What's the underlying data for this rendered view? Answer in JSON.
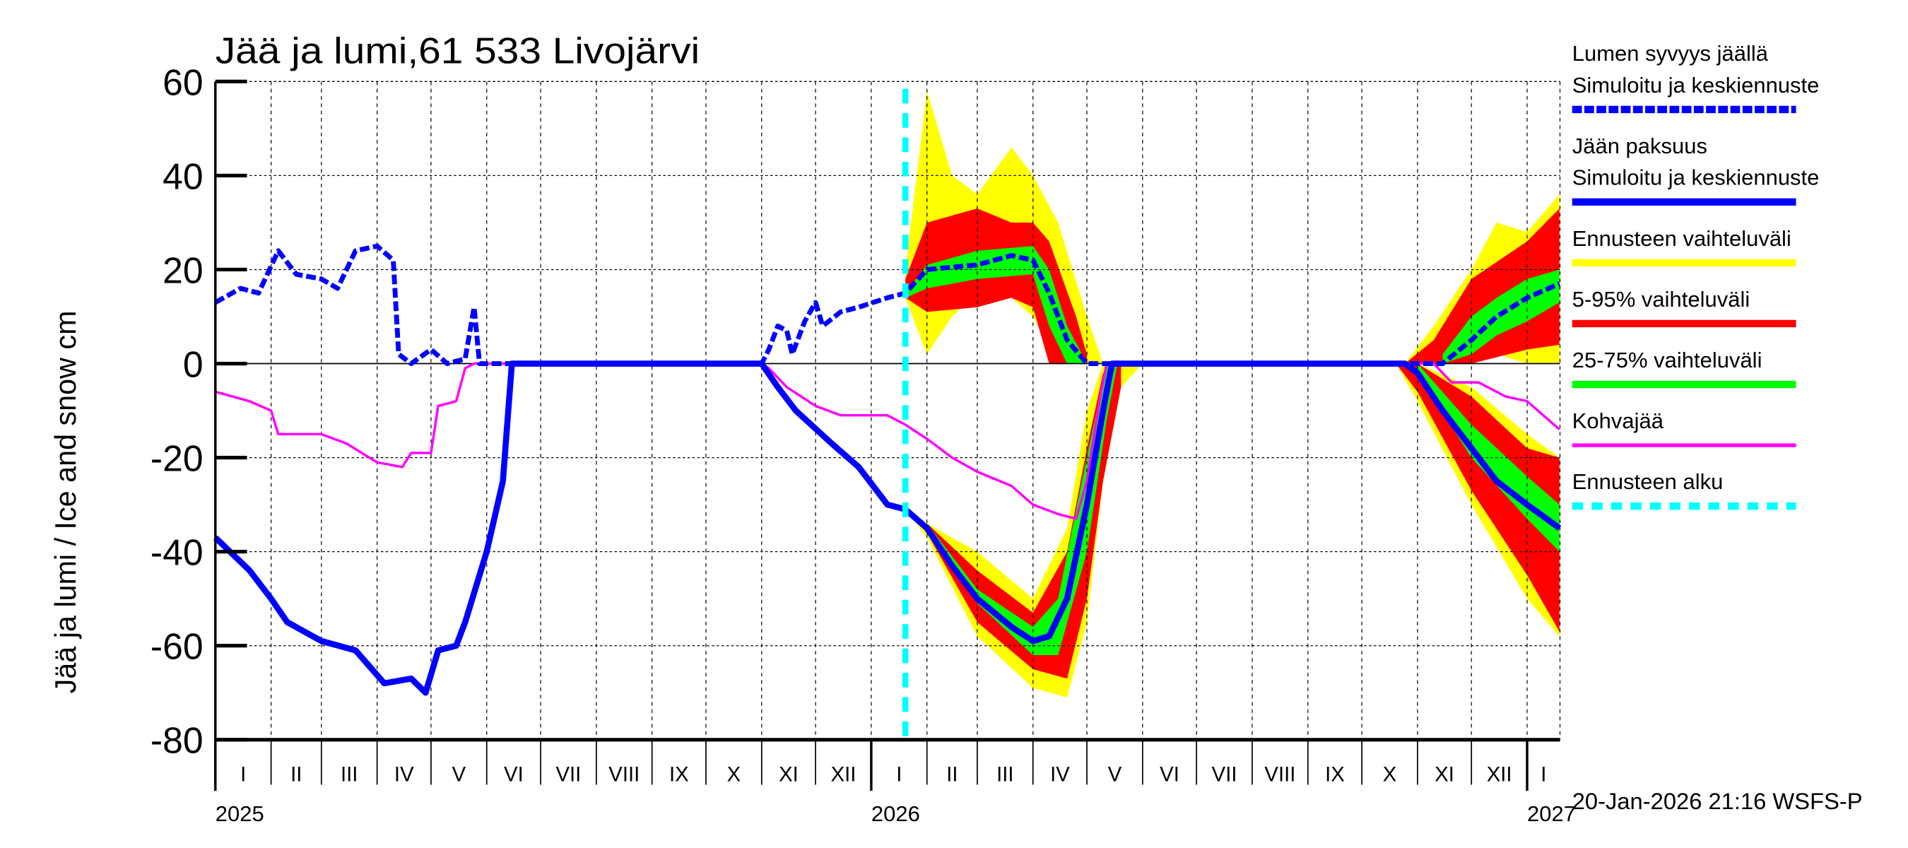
{
  "chart_data": {
    "type": "area",
    "title": "Jää ja lumi,61 533 Livojärvi",
    "ylabel": "Jää ja lumi / Ice and snow    cm",
    "ylim": [
      -80,
      60
    ],
    "yticks": [
      "60",
      "40",
      "20",
      "0",
      "-20",
      "-40",
      "-60",
      "-80"
    ],
    "xlim": [
      "2025-01-01",
      "2027-01-19"
    ],
    "month_labels": [
      "I",
      "II",
      "III",
      "IV",
      "V",
      "VI",
      "VII",
      "VIII",
      "IX",
      "X",
      "XI",
      "XII",
      "I",
      "II",
      "III",
      "IV",
      "V",
      "VI",
      "VII",
      "VIII",
      "IX",
      "X",
      "XI",
      "XII",
      "I"
    ],
    "year_labels": [
      "2025",
      "2026",
      "2027"
    ],
    "grid": true,
    "forecast_start": "2026-01-20",
    "timestamp": "20-Jan-2026 21:16 WSFS-P",
    "legend": {
      "placement": "right",
      "items": [
        {
          "label1": "Lumen syvyys jäällä",
          "label2": "Simuloitu ja keskiennuste",
          "color": "#0000ff",
          "style": "dashed"
        },
        {
          "label1": "Jään paksuus",
          "label2": "Simuloitu ja keskiennuste",
          "color": "#0000ff",
          "style": "solid"
        },
        {
          "label1": "Ennusteen vaihteluväli",
          "color": "#ffff00",
          "style": "band"
        },
        {
          "label1": "5-95% vaihteluväli",
          "color": "#ff0000",
          "style": "band"
        },
        {
          "label1": "25-75% vaihteluväli",
          "color": "#00ff00",
          "style": "band"
        },
        {
          "label1": "Kohvajää",
          "color": "#ff00ff",
          "style": "thin"
        },
        {
          "label1": "Ennusteen alku",
          "color": "#00ffff",
          "style": "dashed"
        }
      ]
    },
    "bands": [
      {
        "name": "Ennusteen vaihteluväli",
        "color": "#ffff00",
        "points": [
          [
            "2026-01-20",
            14,
            20
          ],
          [
            "2026-02-01",
            2,
            58
          ],
          [
            "2026-02-15",
            10,
            40
          ],
          [
            "2026-03-01",
            15,
            36
          ],
          [
            "2026-03-20",
            14,
            46
          ],
          [
            "2026-04-01",
            10,
            40
          ],
          [
            "2026-04-15",
            0,
            30
          ],
          [
            "2026-05-01",
            0,
            10
          ],
          [
            "2026-05-10",
            0,
            0
          ]
        ]
      },
      {
        "name": "Ennusteen vaihteluväli",
        "color": "#ffff00",
        "points": [
          [
            "2026-10-25",
            0,
            0
          ],
          [
            "2026-11-10",
            0,
            8
          ],
          [
            "2026-12-01",
            0,
            20
          ],
          [
            "2026-12-15",
            2,
            30
          ],
          [
            "2027-01-01",
            0,
            28
          ],
          [
            "2027-01-19",
            0,
            36
          ]
        ]
      },
      {
        "name": "Ennusteen vaihteluväli",
        "color": "#ffff00",
        "points": [
          [
            "2026-01-20",
            -31,
            -31
          ],
          [
            "2026-02-01",
            -37,
            -34
          ],
          [
            "2026-03-01",
            -58,
            -40
          ],
          [
            "2026-04-01",
            -69,
            -50
          ],
          [
            "2026-04-20",
            -71,
            -35
          ],
          [
            "2026-05-01",
            -55,
            -10
          ],
          [
            "2026-05-10",
            -25,
            0
          ],
          [
            "2026-05-20",
            -5,
            0
          ],
          [
            "2026-06-01",
            0,
            0
          ]
        ]
      },
      {
        "name": "Ennusteen vaihteluväli",
        "color": "#ffff00",
        "points": [
          [
            "2026-10-20",
            0,
            0
          ],
          [
            "2026-11-01",
            -8,
            0
          ],
          [
            "2026-12-01",
            -30,
            -5
          ],
          [
            "2027-01-01",
            -50,
            -15
          ],
          [
            "2027-01-19",
            -58,
            -20
          ]
        ]
      },
      {
        "name": "5-95% vaihteluväli",
        "color": "#ff0000",
        "points": [
          [
            "2026-01-20",
            14,
            18
          ],
          [
            "2026-02-01",
            11,
            30
          ],
          [
            "2026-03-01",
            12,
            33
          ],
          [
            "2026-03-20",
            14,
            30
          ],
          [
            "2026-04-01",
            12,
            30
          ],
          [
            "2026-04-10",
            0,
            26
          ],
          [
            "2026-04-25",
            0,
            10
          ],
          [
            "2026-05-01",
            0,
            2
          ]
        ]
      },
      {
        "name": "5-95% vaihteluväli",
        "color": "#ff0000",
        "points": [
          [
            "2026-10-25",
            0,
            0
          ],
          [
            "2026-11-10",
            0,
            5
          ],
          [
            "2026-12-01",
            0,
            18
          ],
          [
            "2027-01-01",
            3,
            26
          ],
          [
            "2027-01-19",
            4,
            33
          ]
        ]
      },
      {
        "name": "5-95% vaihteluväli",
        "color": "#ff0000",
        "points": [
          [
            "2026-02-01",
            -36,
            -34
          ],
          [
            "2026-03-01",
            -55,
            -44
          ],
          [
            "2026-04-01",
            -65,
            -53
          ],
          [
            "2026-04-20",
            -67,
            -40
          ],
          [
            "2026-05-01",
            -50,
            -18
          ],
          [
            "2026-05-10",
            -25,
            -2
          ],
          [
            "2026-05-20",
            -5,
            0
          ]
        ]
      },
      {
        "name": "5-95% vaihteluväli",
        "color": "#ff0000",
        "points": [
          [
            "2026-10-20",
            0,
            0
          ],
          [
            "2026-11-01",
            -6,
            0
          ],
          [
            "2026-12-01",
            -27,
            -7
          ],
          [
            "2027-01-01",
            -45,
            -18
          ],
          [
            "2027-01-19",
            -57,
            -20
          ]
        ]
      },
      {
        "name": "25-75% vaihteluväli",
        "color": "#00ff00",
        "points": [
          [
            "2026-01-20",
            14,
            15
          ],
          [
            "2026-02-01",
            16,
            21
          ],
          [
            "2026-03-01",
            18,
            24
          ],
          [
            "2026-04-01",
            19,
            25
          ],
          [
            "2026-04-10",
            8,
            20
          ],
          [
            "2026-04-20",
            0,
            8
          ],
          [
            "2026-05-01",
            0,
            0
          ]
        ]
      },
      {
        "name": "25-75% vaihteluväli",
        "color": "#00ff00",
        "points": [
          [
            "2026-11-15",
            0,
            2
          ],
          [
            "2026-12-01",
            2,
            10
          ],
          [
            "2026-12-15",
            6,
            14
          ],
          [
            "2027-01-01",
            9,
            18
          ],
          [
            "2027-01-19",
            13,
            20
          ]
        ]
      },
      {
        "name": "25-75% vaihteluväli",
        "color": "#00ff00",
        "points": [
          [
            "2026-02-01",
            -35,
            -34
          ],
          [
            "2026-03-01",
            -51,
            -48
          ],
          [
            "2026-04-01",
            -62,
            -56
          ],
          [
            "2026-04-15",
            -62,
            -50
          ],
          [
            "2026-05-01",
            -40,
            -20
          ],
          [
            "2026-05-12",
            -12,
            0
          ],
          [
            "2026-05-18",
            0,
            0
          ]
        ]
      },
      {
        "name": "25-75% vaihteluväli",
        "color": "#00ff00",
        "points": [
          [
            "2026-11-01",
            -2,
            0
          ],
          [
            "2026-12-01",
            -20,
            -13
          ],
          [
            "2027-01-01",
            -33,
            -24
          ],
          [
            "2027-01-19",
            -40,
            -30
          ]
        ]
      }
    ],
    "series": [
      {
        "name": "Kohvajää",
        "color": "#ff00ff",
        "style": "thin",
        "points": [
          [
            "2025-01-01",
            -6
          ],
          [
            "2025-01-20",
            -8
          ],
          [
            "2025-02-01",
            -10
          ],
          [
            "2025-02-05",
            -15
          ],
          [
            "2025-03-01",
            -15
          ],
          [
            "2025-03-15",
            -17
          ],
          [
            "2025-04-01",
            -21
          ],
          [
            "2025-04-15",
            -22
          ],
          [
            "2025-04-20",
            -19
          ],
          [
            "2025-05-01",
            -19
          ],
          [
            "2025-05-05",
            -9
          ],
          [
            "2025-05-15",
            -8
          ],
          [
            "2025-05-20",
            -1
          ],
          [
            "2025-05-25",
            0
          ],
          [
            "2025-11-01",
            0
          ],
          [
            "2025-11-05",
            -1
          ],
          [
            "2025-11-15",
            -5
          ],
          [
            "2025-12-01",
            -9
          ],
          [
            "2025-12-15",
            -11
          ],
          [
            "2026-01-10",
            -11
          ],
          [
            "2026-01-20",
            -13
          ],
          [
            "2026-02-01",
            -16
          ],
          [
            "2026-02-15",
            -20
          ],
          [
            "2026-03-01",
            -23
          ],
          [
            "2026-03-20",
            -26
          ],
          [
            "2026-04-01",
            -30
          ],
          [
            "2026-04-15",
            -32
          ],
          [
            "2026-04-25",
            -33
          ],
          [
            "2026-05-01",
            -25
          ],
          [
            "2026-05-08",
            -8
          ],
          [
            "2026-05-12",
            0
          ],
          [
            "2026-11-10",
            0
          ],
          [
            "2026-11-20",
            -4
          ],
          [
            "2026-12-05",
            -4
          ],
          [
            "2026-12-20",
            -7
          ],
          [
            "2027-01-01",
            -8
          ],
          [
            "2027-01-19",
            -14
          ]
        ]
      },
      {
        "name": "Lumen syvyys jäällä",
        "color": "#0000ff",
        "style": "dashed",
        "points": [
          [
            "2025-01-01",
            13
          ],
          [
            "2025-01-15",
            16
          ],
          [
            "2025-01-25",
            15
          ],
          [
            "2025-02-05",
            24
          ],
          [
            "2025-02-15",
            19
          ],
          [
            "2025-03-01",
            18
          ],
          [
            "2025-03-10",
            16
          ],
          [
            "2025-03-20",
            24
          ],
          [
            "2025-04-01",
            25
          ],
          [
            "2025-04-10",
            22
          ],
          [
            "2025-04-13",
            2
          ],
          [
            "2025-04-20",
            0
          ],
          [
            "2025-05-01",
            3
          ],
          [
            "2025-05-10",
            0
          ],
          [
            "2025-05-20",
            1
          ],
          [
            "2025-05-25",
            12
          ],
          [
            "2025-05-28",
            0
          ],
          [
            "2025-11-01",
            0
          ],
          [
            "2025-11-05",
            3
          ],
          [
            "2025-11-10",
            8
          ],
          [
            "2025-11-15",
            7
          ],
          [
            "2025-11-18",
            2
          ],
          [
            "2025-11-25",
            9
          ],
          [
            "2025-12-01",
            13
          ],
          [
            "2025-12-05",
            8
          ],
          [
            "2025-12-15",
            11
          ],
          [
            "2025-12-25",
            12
          ],
          [
            "2026-01-10",
            14
          ],
          [
            "2026-01-20",
            15
          ],
          [
            "2026-02-01",
            20
          ],
          [
            "2026-03-01",
            21
          ],
          [
            "2026-03-20",
            23
          ],
          [
            "2026-04-01",
            22
          ],
          [
            "2026-04-10",
            15
          ],
          [
            "2026-04-20",
            5
          ],
          [
            "2026-05-01",
            0
          ],
          [
            "2026-11-15",
            0
          ],
          [
            "2026-12-01",
            5
          ],
          [
            "2026-12-15",
            10
          ],
          [
            "2027-01-01",
            14
          ],
          [
            "2027-01-19",
            17
          ]
        ]
      },
      {
        "name": "Jään paksuus",
        "color": "#0000ff",
        "style": "solid",
        "points": [
          [
            "2025-01-01",
            -37
          ],
          [
            "2025-01-20",
            -44
          ],
          [
            "2025-02-01",
            -50
          ],
          [
            "2025-02-10",
            -55
          ],
          [
            "2025-03-01",
            -59
          ],
          [
            "2025-03-20",
            -61
          ],
          [
            "2025-04-05",
            -68
          ],
          [
            "2025-04-20",
            -67
          ],
          [
            "2025-04-28",
            -70
          ],
          [
            "2025-05-05",
            -61
          ],
          [
            "2025-05-15",
            -60
          ],
          [
            "2025-05-20",
            -55
          ],
          [
            "2025-06-01",
            -40
          ],
          [
            "2025-06-10",
            -25
          ],
          [
            "2025-06-15",
            0
          ],
          [
            "2025-11-01",
            0
          ],
          [
            "2025-11-10",
            -5
          ],
          [
            "2025-11-20",
            -10
          ],
          [
            "2025-12-10",
            -17
          ],
          [
            "2025-12-25",
            -22
          ],
          [
            "2026-01-10",
            -30
          ],
          [
            "2026-01-20",
            -31
          ],
          [
            "2026-02-01",
            -35
          ],
          [
            "2026-02-15",
            -43
          ],
          [
            "2026-03-01",
            -50
          ],
          [
            "2026-03-20",
            -56
          ],
          [
            "2026-04-01",
            -59
          ],
          [
            "2026-04-10",
            -58
          ],
          [
            "2026-04-20",
            -50
          ],
          [
            "2026-05-01",
            -30
          ],
          [
            "2026-05-10",
            -10
          ],
          [
            "2026-05-15",
            0
          ],
          [
            "2026-10-25",
            0
          ],
          [
            "2026-11-01",
            -2
          ],
          [
            "2026-11-15",
            -10
          ],
          [
            "2026-12-01",
            -18
          ],
          [
            "2026-12-15",
            -25
          ],
          [
            "2027-01-01",
            -30
          ],
          [
            "2027-01-19",
            -35
          ]
        ]
      }
    ]
  }
}
